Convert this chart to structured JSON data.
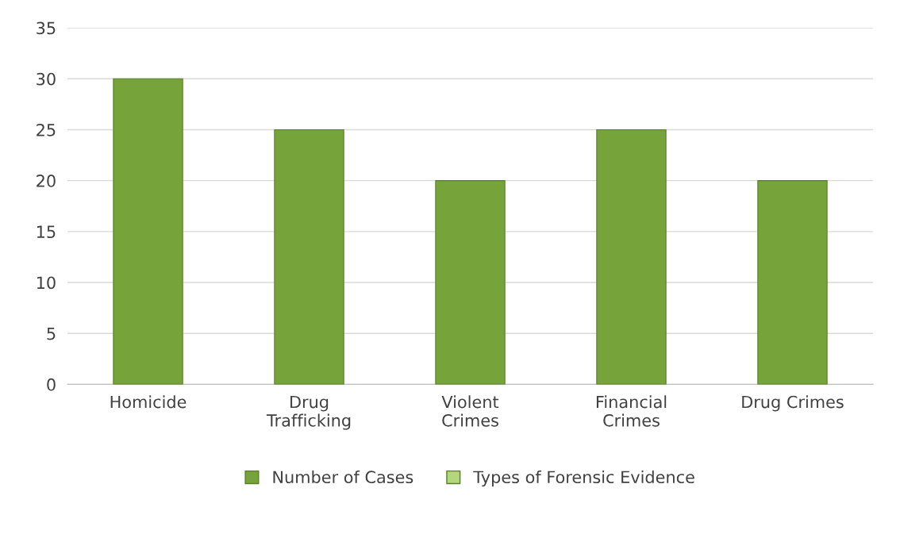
{
  "chart_data": {
    "type": "bar",
    "categories": [
      "Homicide",
      "Drug Trafficking",
      "Violent Crimes",
      "Financial Crimes",
      "Drug Crimes"
    ],
    "series": [
      {
        "name": "Number of Cases",
        "color": "#76a33a",
        "values": [
          30,
          25,
          20,
          25,
          20
        ]
      },
      {
        "name": "Types of Forensic Evidence",
        "color": "#b3d77a",
        "values": [
          null,
          null,
          null,
          null,
          null
        ]
      }
    ],
    "ylim": [
      0,
      35
    ],
    "yticks": [
      0,
      5,
      10,
      15,
      20,
      25,
      30,
      35
    ],
    "grid": "y",
    "legend": "bottom"
  }
}
